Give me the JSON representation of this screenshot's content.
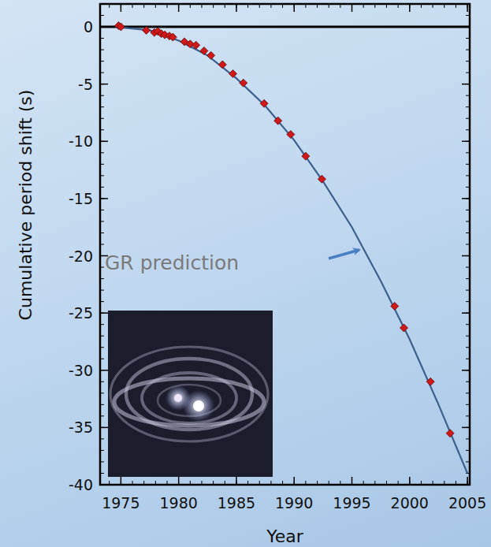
{
  "chart_data": {
    "type": "scatter",
    "x_label": "Year",
    "y_label": "Cumulative period shift (s)",
    "xlim": [
      1973.2,
      2005.2
    ],
    "ylim": [
      -40,
      2
    ],
    "xticks": [
      1975,
      1980,
      1985,
      1990,
      1995,
      2000,
      2005
    ],
    "yticks": [
      -40,
      -35,
      -30,
      -25,
      -20,
      -15,
      -10,
      -5,
      0
    ],
    "grid": false,
    "zero_line": 0,
    "series": [
      {
        "type": "scatter",
        "marker": "diamond",
        "color": "#d01818",
        "x": [
          1974.8,
          1975.0,
          1977.2,
          1977.9,
          1978.2,
          1978.5,
          1978.8,
          1979.2,
          1979.5,
          1980.5,
          1981.0,
          1981.5,
          1982.2,
          1982.8,
          1983.8,
          1984.7,
          1985.6,
          1987.4,
          1988.6,
          1989.7,
          1991.0,
          1992.4,
          1998.7,
          1999.5,
          2001.8,
          2003.5
        ],
        "values": [
          0.1,
          0.0,
          -0.3,
          -0.5,
          -0.4,
          -0.6,
          -0.7,
          -0.8,
          -0.9,
          -1.3,
          -1.5,
          -1.6,
          -2.1,
          -2.5,
          -3.3,
          -4.1,
          -4.9,
          -6.7,
          -8.2,
          -9.4,
          -11.3,
          -13.3,
          -24.4,
          -26.3,
          -31.0,
          -35.5
        ]
      },
      {
        "name": "GR prediction",
        "type": "line",
        "line_style": "solid",
        "color": "#3d5f8c",
        "x": [
          1974.5,
          1977.5,
          1980,
          1982.5,
          1985,
          1987.5,
          1990,
          1992.5,
          1995,
          1997.5,
          2000,
          2002.5,
          2005
        ],
        "values": [
          0.0,
          -0.3,
          -1.2,
          -2.5,
          -4.5,
          -6.9,
          -9.9,
          -13.5,
          -17.5,
          -22.2,
          -27.3,
          -33.0,
          -39.0
        ]
      }
    ]
  }
}
